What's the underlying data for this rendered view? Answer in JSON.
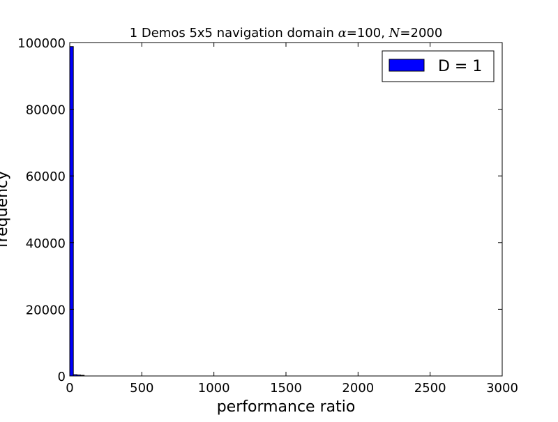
{
  "chart_data": {
    "type": "bar",
    "title_prefix": "1 Demos 5x5 navigation domain ",
    "title_alpha_symbol": "α",
    "title_alpha_value": "=100, ",
    "title_n_symbol": "N",
    "title_n_value": "=2000",
    "xlabel": "performance ratio",
    "ylabel": "frequency",
    "xlim": [
      0,
      3000
    ],
    "ylim": [
      0,
      100000
    ],
    "xticks": [
      0,
      500,
      1000,
      1500,
      2000,
      2500,
      3000
    ],
    "yticks": [
      0,
      20000,
      40000,
      60000,
      80000,
      100000
    ],
    "series": [
      {
        "name": "D = 1",
        "color": "#0000ff",
        "bins": [
          {
            "x0": 0,
            "x1": 25,
            "value": 98800
          },
          {
            "x0": 25,
            "x1": 50,
            "value": 400
          },
          {
            "x0": 50,
            "x1": 75,
            "value": 300
          },
          {
            "x0": 75,
            "x1": 100,
            "value": 200
          }
        ]
      }
    ],
    "legend_position": "top-right",
    "grid": false
  }
}
